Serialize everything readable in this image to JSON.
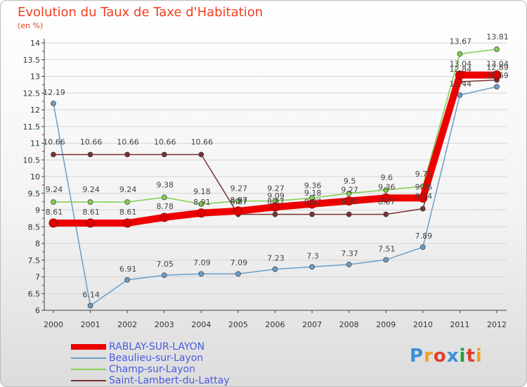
{
  "title": "Evolution du Taux de Taxe d'Habitation",
  "subtitle": "(en %)",
  "logo": {
    "text": "Proxiti",
    "colors": [
      "#3a8fd8",
      "#f0a020",
      "#e04030",
      "#3a8fd8",
      "#20a040",
      "#e04030",
      "#f0a020"
    ]
  },
  "chart_data": {
    "type": "line",
    "x": [
      "2000",
      "2001",
      "2002",
      "2003",
      "2004",
      "2005",
      "2006",
      "2007",
      "2008",
      "2009",
      "2010",
      "2011",
      "2012"
    ],
    "ylim": [
      6,
      14
    ],
    "yticks": [
      "6",
      "6.5",
      "7",
      "7.5",
      "8",
      "8.5",
      "9",
      "9.5",
      "10",
      "10.5",
      "11",
      "11.5",
      "12",
      "12.5",
      "13",
      "13.5",
      "14"
    ],
    "legend_position": "bottom-left",
    "series": [
      {
        "name": "RABLAY-SUR-LAYON",
        "color": "#ee0000",
        "values": [
          8.61,
          8.61,
          8.61,
          8.78,
          8.91,
          8.97,
          9.09,
          9.18,
          9.27,
          9.36,
          9.36,
          13.04,
          13.04
        ],
        "labels": [
          "8.61",
          "8.61",
          "8.61",
          "8.78",
          "8.91",
          "8.97",
          "9.09",
          "9.18",
          "9.27",
          "9.36",
          "9.36",
          "13.04",
          "13.04"
        ]
      },
      {
        "name": "Beaulieu-sur-Layon",
        "color": "#6a9ec8",
        "values": [
          12.19,
          6.14,
          6.91,
          7.05,
          7.09,
          7.09,
          7.23,
          7.3,
          7.37,
          7.51,
          7.89,
          12.44,
          12.69
        ],
        "labels": [
          "12.19",
          "6.14",
          "6.91",
          "7.05",
          "7.09",
          "7.09",
          "7.23",
          "7.3",
          "7.37",
          "7.51",
          "7.89",
          "12.44",
          "12.69"
        ]
      },
      {
        "name": "Champ-sur-Layon",
        "color": "#80d050",
        "values": [
          9.24,
          9.24,
          9.24,
          9.38,
          9.18,
          9.27,
          9.27,
          9.36,
          9.5,
          9.6,
          9.71,
          13.67,
          13.81
        ],
        "labels": [
          "9.24",
          "9.24",
          "9.24",
          "9.38",
          "9.18",
          "9.27",
          "9.27",
          "9.36",
          "9.5",
          "9.6",
          "9.71",
          "13.67",
          "13.81"
        ]
      },
      {
        "name": "Saint-Lambert-du-Lattay",
        "color": "#7a3030",
        "values": [
          10.66,
          10.66,
          10.66,
          10.66,
          10.66,
          8.87,
          8.87,
          8.87,
          8.87,
          8.87,
          9.04,
          12.84,
          12.89
        ],
        "labels": [
          "10.66",
          "10.66",
          "10.66",
          "10.66",
          "10.66",
          "8.87",
          "8.87",
          "8.87",
          "8.87",
          "8.87",
          "9.04",
          "12.84",
          "12.89"
        ]
      }
    ]
  }
}
